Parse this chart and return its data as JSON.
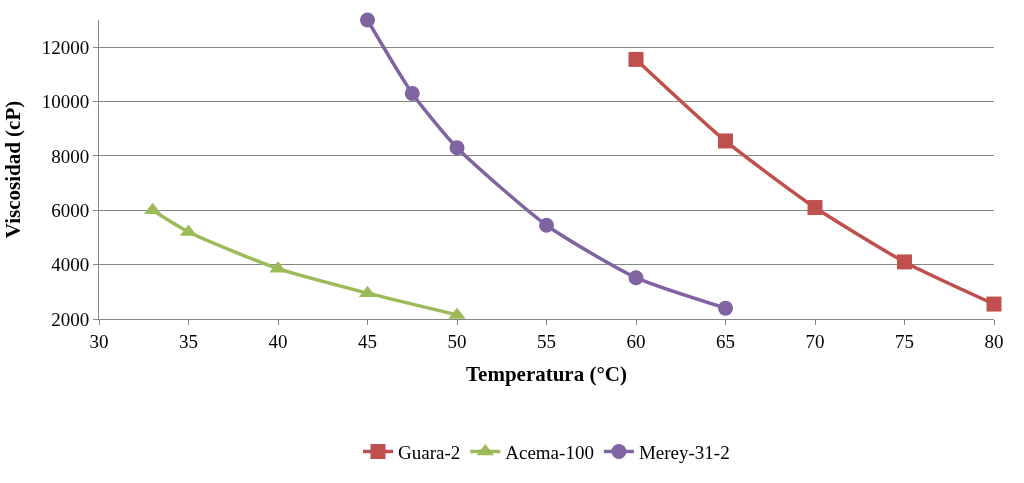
{
  "chart_data": {
    "type": "line",
    "xlabel": "Temperatura (°C)",
    "ylabel": "Viscosidad (cP)",
    "xlim": [
      30,
      80
    ],
    "xticks": [
      30,
      35,
      40,
      45,
      50,
      55,
      60,
      65,
      70,
      75,
      80
    ],
    "ylim": [
      2000,
      13000
    ],
    "yticks": [
      2000,
      4000,
      6000,
      8000,
      10000,
      12000
    ],
    "grid": "y",
    "legend": "bottom",
    "series": [
      {
        "name": "Guara-2",
        "color": "#c0504d",
        "marker": "square",
        "x": [
          60,
          65,
          70,
          75,
          80
        ],
        "values": [
          11550,
          8550,
          6100,
          4100,
          2550
        ]
      },
      {
        "name": "Acema-100",
        "color": "#9bbb59",
        "marker": "triangle",
        "x": [
          33,
          35,
          40,
          45,
          50
        ],
        "values": [
          6000,
          5200,
          3850,
          2950,
          2150
        ]
      },
      {
        "name": "Merey-31-2",
        "color": "#8064a2",
        "marker": "circle",
        "x": [
          45,
          47.5,
          50,
          55,
          60,
          65
        ],
        "values": [
          13000,
          10300,
          8300,
          5450,
          3520,
          2400
        ]
      }
    ]
  }
}
